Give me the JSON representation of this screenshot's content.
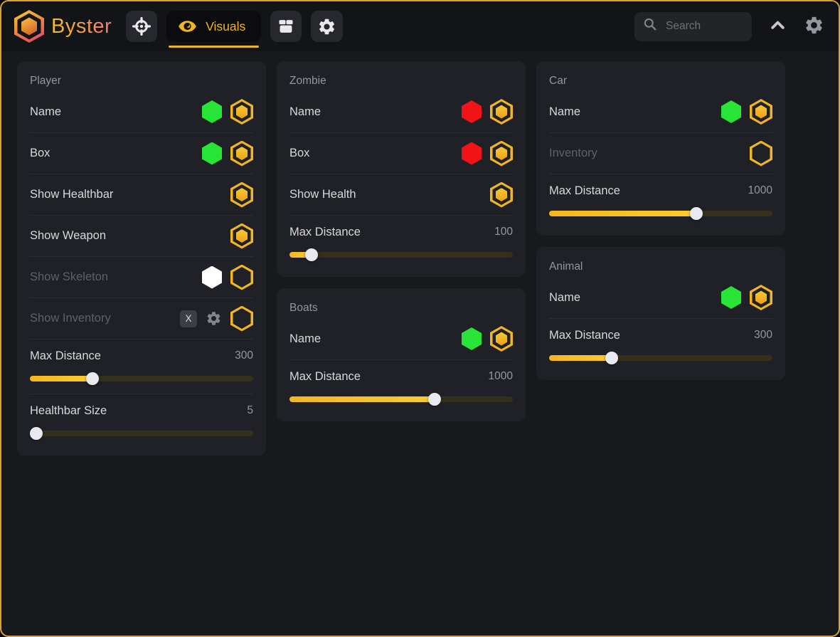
{
  "topbar": {
    "brand": "Byster",
    "tabs": [
      {
        "id": "aimbot",
        "icon": "crosshair-icon",
        "label": "",
        "active": false
      },
      {
        "id": "visuals",
        "icon": "eye-icon",
        "label": "Visuals",
        "active": true
      },
      {
        "id": "loot",
        "icon": "box-icon",
        "label": "",
        "active": false
      },
      {
        "id": "settings",
        "icon": "gear-icon",
        "label": "",
        "active": false
      }
    ],
    "search": {
      "placeholder": "Search",
      "icon": "search-icon"
    },
    "right_icons": [
      "chevron-up-icon",
      "gear-icon"
    ]
  },
  "colors": {
    "accent": "#f0b527",
    "green": "#27e436",
    "red": "#f11318",
    "white": "#ffffff",
    "window_border": "#dfa32c"
  },
  "panels": [
    {
      "title": "Player",
      "column": 0,
      "rows": [
        {
          "type": "toggle",
          "label": "Name",
          "swatch": "green",
          "on": true,
          "dim": false
        },
        {
          "type": "toggle",
          "label": "Box",
          "swatch": "green",
          "on": true,
          "dim": false
        },
        {
          "type": "toggle",
          "label": "Show Healthbar",
          "on": true,
          "dim": false
        },
        {
          "type": "toggle",
          "label": "Show Weapon",
          "on": true,
          "dim": false
        },
        {
          "type": "toggle",
          "label": "Show Skeleton",
          "swatch": "white",
          "on": false,
          "dim": true
        },
        {
          "type": "toggle",
          "label": "Show Inventory",
          "keybind": "X",
          "gear": true,
          "on": false,
          "dim": true
        },
        {
          "type": "slider",
          "label": "Max Distance",
          "value": "300",
          "percent": 28
        },
        {
          "type": "slider",
          "label": "Healthbar Size",
          "value": "5",
          "percent": 3
        }
      ]
    },
    {
      "title": "Zombie",
      "column": 1,
      "rows": [
        {
          "type": "toggle",
          "label": "Name",
          "swatch": "red",
          "on": true,
          "dim": false
        },
        {
          "type": "toggle",
          "label": "Box",
          "swatch": "red",
          "on": true,
          "dim": false
        },
        {
          "type": "toggle",
          "label": "Show Health",
          "on": true,
          "dim": false
        },
        {
          "type": "slider",
          "label": "Max Distance",
          "value": "100",
          "percent": 10
        }
      ]
    },
    {
      "title": "Boats",
      "column": 1,
      "rows": [
        {
          "type": "toggle",
          "label": "Name",
          "swatch": "green",
          "on": true,
          "dim": false
        },
        {
          "type": "slider",
          "label": "Max Distance",
          "value": "1000",
          "percent": 65
        }
      ]
    },
    {
      "title": "Car",
      "column": 2,
      "rows": [
        {
          "type": "toggle",
          "label": "Name",
          "swatch": "green",
          "on": true,
          "dim": false
        },
        {
          "type": "toggle",
          "label": "Inventory",
          "on": false,
          "dim": true
        },
        {
          "type": "slider",
          "label": "Max Distance",
          "value": "1000",
          "percent": 66
        }
      ]
    },
    {
      "title": "Animal",
      "column": 2,
      "rows": [
        {
          "type": "toggle",
          "label": "Name",
          "swatch": "green",
          "on": true,
          "dim": false
        },
        {
          "type": "slider",
          "label": "Max Distance",
          "value": "300",
          "percent": 28
        }
      ]
    }
  ]
}
